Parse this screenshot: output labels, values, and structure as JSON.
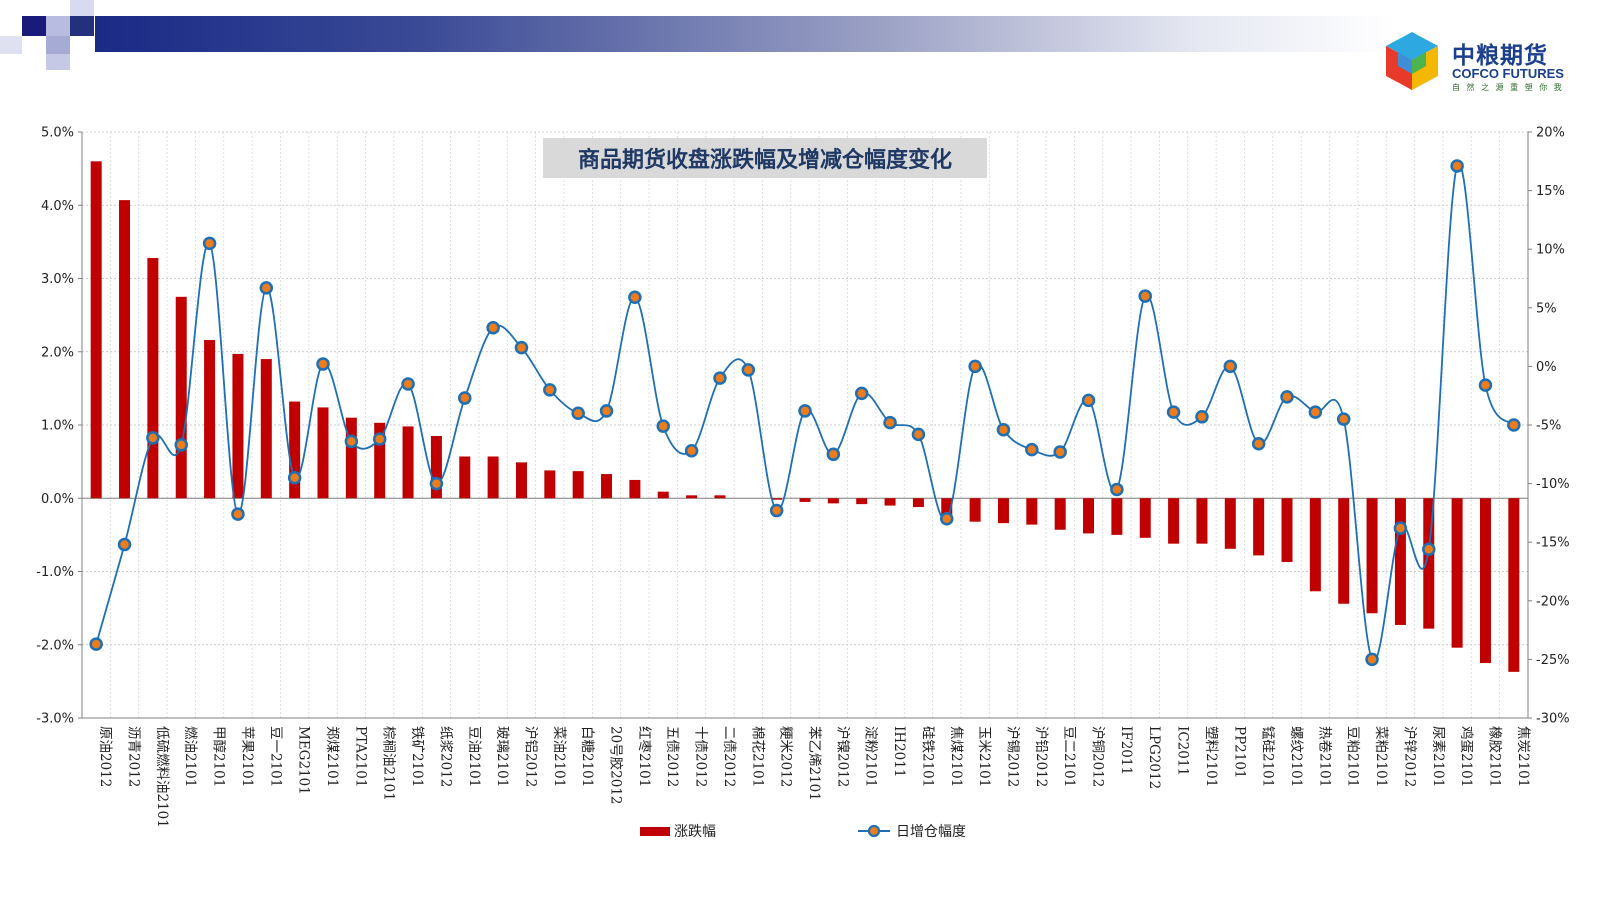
{
  "brand": {
    "name_cn": "中粮期货",
    "name_en": "COFCO FUTURES",
    "slogan": "自 然 之 源    重 塑 你 我"
  },
  "colors": {
    "bar": "#c00000",
    "line": "#1f6fb4",
    "marker_fill": "#ec7c1c",
    "title_bg": "#d9d9d9",
    "title_text": "#1f3864",
    "header_navy": "#1a2a86"
  },
  "chart_data": {
    "type": "bar",
    "title": "商品期货收盘涨跌幅及增减仓幅度变化",
    "legend_position": "bottom",
    "grid": true,
    "categories": [
      "原油2012",
      "沥青2012",
      "低硫燃料油2101",
      "燃油2101",
      "甲醇2101",
      "苹果2101",
      "豆一2101",
      "MEG2101",
      "郑煤2101",
      "PTA2101",
      "棕榈油2101",
      "铁矿2101",
      "纸浆2012",
      "豆油2101",
      "玻璃2101",
      "沪铝2012",
      "菜油2101",
      "白糖2101",
      "20号胶2012",
      "红枣2101",
      "五债2012",
      "十债2012",
      "二债2012",
      "棉花2101",
      "粳米2012",
      "苯乙烯2101",
      "沪镍2012",
      "淀粉2101",
      "IH2011",
      "硅铁2101",
      "焦煤2101",
      "玉米2101",
      "沪锡2012",
      "沪铅2012",
      "豆二2101",
      "沪铜2012",
      "IF2011",
      "LPG2012",
      "IC2011",
      "塑料2101",
      "PP2101",
      "锰硅2101",
      "螺纹2101",
      "热卷2101",
      "豆粕2101",
      "菜粕2101",
      "沪锌2012",
      "尿素2101",
      "鸡蛋2101",
      "橡胶2101",
      "焦炭2101"
    ],
    "y_left": {
      "ylim": [
        -3.0,
        5.0
      ],
      "ticks": [
        "5.0%",
        "4.0%",
        "3.0%",
        "2.0%",
        "1.0%",
        "0.0%",
        "-1.0%",
        "-2.0%",
        "-3.0%"
      ]
    },
    "y_right": {
      "ylim": [
        -30,
        20
      ],
      "ticks": [
        "20%",
        "15%",
        "10%",
        "5%",
        "0%",
        "-5%",
        "-10%",
        "-15%",
        "-20%",
        "-25%",
        "-30%"
      ]
    },
    "series": [
      {
        "name": "涨跌幅",
        "type": "bar",
        "axis": "left",
        "values": [
          4.6,
          4.07,
          3.28,
          2.75,
          2.16,
          1.97,
          1.9,
          1.32,
          1.24,
          1.1,
          1.03,
          0.98,
          0.85,
          0.57,
          0.57,
          0.49,
          0.38,
          0.37,
          0.33,
          0.25,
          0.09,
          0.04,
          0.04,
          0.0,
          -0.02,
          -0.05,
          -0.07,
          -0.08,
          -0.1,
          -0.12,
          -0.25,
          -0.32,
          -0.34,
          -0.36,
          -0.43,
          -0.48,
          -0.5,
          -0.54,
          -0.62,
          -0.62,
          -0.69,
          -0.78,
          -0.87,
          -1.27,
          -1.44,
          -1.57,
          -1.73,
          -1.78,
          -2.04,
          -2.25,
          -2.37
        ]
      },
      {
        "name": "日增仓幅度",
        "type": "line",
        "axis": "right",
        "values": [
          -23.7,
          -15.2,
          -6.1,
          -6.7,
          10.5,
          -12.6,
          6.7,
          -9.5,
          0.2,
          -6.4,
          -6.2,
          -1.5,
          -10.0,
          -2.7,
          3.3,
          1.6,
          -2.0,
          -4.0,
          -3.8,
          5.9,
          -5.1,
          -7.2,
          -1.0,
          -0.3,
          -12.3,
          -3.8,
          -7.5,
          -2.3,
          -4.8,
          -5.8,
          -13.0,
          0.0,
          -5.4,
          -7.1,
          -7.3,
          -2.9,
          -10.5,
          6.0,
          -3.9,
          -4.3,
          0.0,
          -6.6,
          -2.6,
          -3.9,
          -4.5,
          -25.0,
          -13.8,
          -15.6,
          17.1,
          -1.6,
          -5.0
        ]
      }
    ]
  }
}
